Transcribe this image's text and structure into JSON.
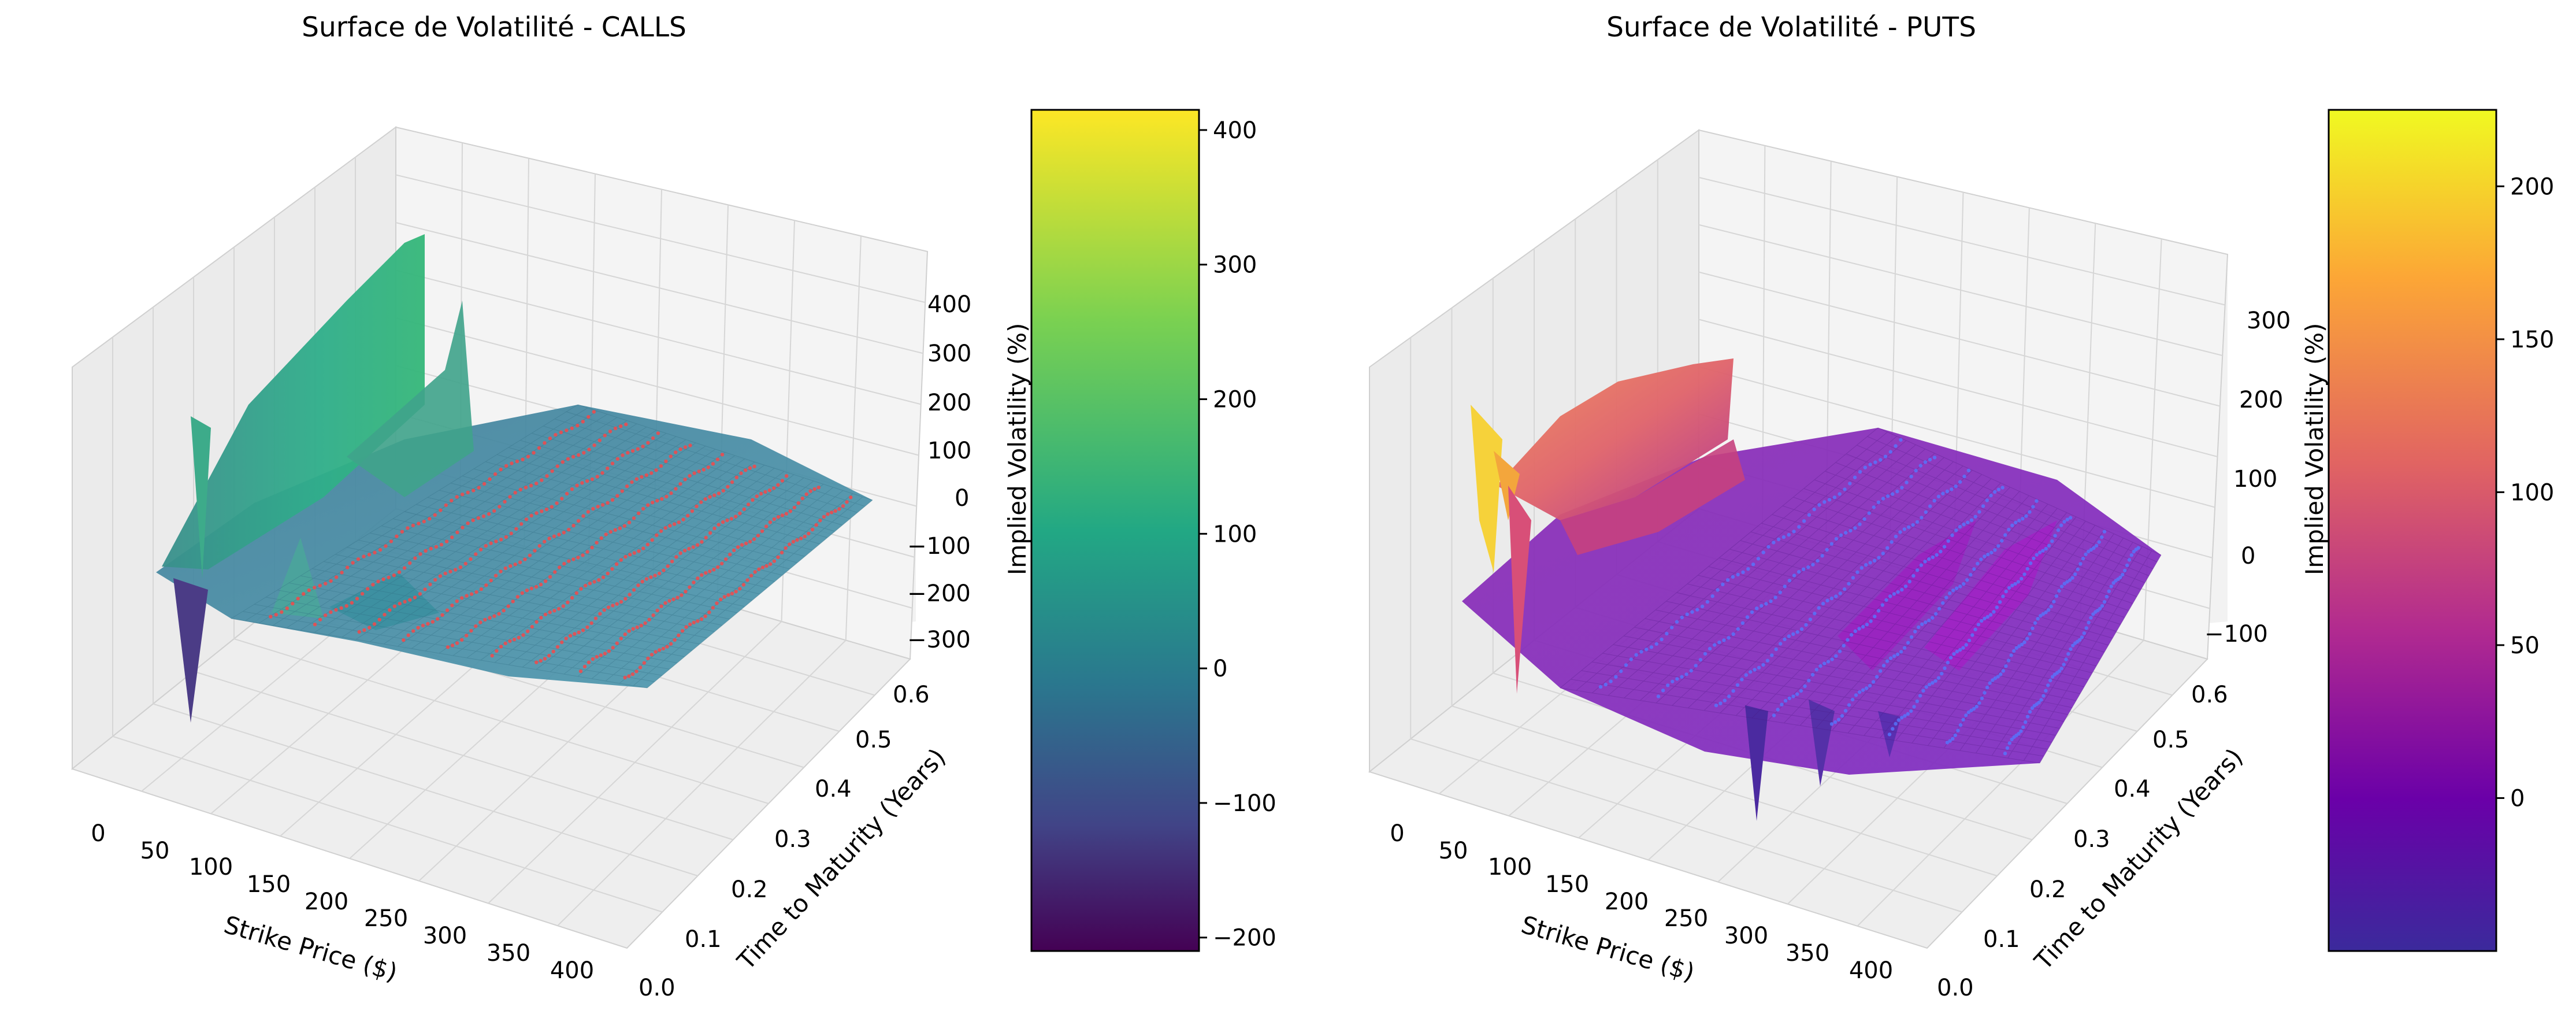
{
  "chart_data": [
    {
      "type": "surface3d",
      "title": "Surface de Volatilité - CALLS",
      "xlabel": "Strike Price ($)",
      "ylabel": "Time to Maturity (Years)",
      "zlabel": "Implied Volatility (%)",
      "x_ticks": [
        "0",
        "50",
        "100",
        "150",
        "200",
        "250",
        "300",
        "350",
        "400"
      ],
      "y_ticks": [
        "0.0",
        "0.1",
        "0.2",
        "0.3",
        "0.4",
        "0.5",
        "0.6"
      ],
      "z_ticks": [
        "−300",
        "−200",
        "−100",
        "0",
        "100",
        "200",
        "300",
        "400"
      ],
      "xlim": [
        0,
        420
      ],
      "ylim": [
        0,
        0.62
      ],
      "zlim": [
        -350,
        450
      ],
      "colormap": "viridis",
      "scatter_color": "#ff4444",
      "colorbar": {
        "label": "Implied Volatility (%)",
        "range": [
          -210,
          415
        ],
        "ticks": [
          "400",
          "300",
          "200",
          "100",
          "0",
          "−100",
          "−200"
        ],
        "colors": [
          "#fde725",
          "#5ec962",
          "#21918c",
          "#3b528b",
          "#440154"
        ]
      },
      "surface_summary": {
        "baseline_iv": 0,
        "peaks": [
          {
            "strike": 60,
            "maturity": 0.25,
            "iv": 420
          },
          {
            "strike": 20,
            "maturity": 0.05,
            "iv": 150
          },
          {
            "strike": 120,
            "maturity": 0.35,
            "iv": 190
          }
        ],
        "troughs": [
          {
            "strike": 15,
            "maturity": 0.05,
            "iv": -220
          },
          {
            "strike": 230,
            "maturity": 0.02,
            "iv": -160
          }
        ]
      }
    },
    {
      "type": "surface3d",
      "title": "Surface de Volatilité - PUTS",
      "xlabel": "Strike Price ($)",
      "ylabel": "Time to Maturity (Years)",
      "zlabel": "Implied Volatility (%)",
      "x_ticks": [
        "0",
        "50",
        "100",
        "150",
        "200",
        "250",
        "300",
        "350",
        "400"
      ],
      "y_ticks": [
        "0.0",
        "0.1",
        "0.2",
        "0.3",
        "0.4",
        "0.5",
        "0.6"
      ],
      "z_ticks": [
        "−100",
        "0",
        "100",
        "200",
        "300"
      ],
      "xlim": [
        0,
        420
      ],
      "ylim": [
        0,
        0.62
      ],
      "zlim": [
        -120,
        350
      ],
      "colormap": "plasma",
      "scatter_color": "#4466ff",
      "colorbar": {
        "label": "Implied Volatility (%)",
        "range": [
          -50,
          225
        ],
        "ticks": [
          "200",
          "150",
          "100",
          "50",
          "0"
        ],
        "colors": [
          "#f0f921",
          "#fca636",
          "#e16462",
          "#b12a90",
          "#6a00a8",
          "#0d0887"
        ]
      },
      "surface_summary": {
        "baseline_iv": 15,
        "peaks": [
          {
            "strike": 10,
            "maturity": 0.03,
            "iv": 220
          },
          {
            "strike": 70,
            "maturity": 0.2,
            "iv": 180
          },
          {
            "strike": 290,
            "maturity": 0.4,
            "iv": 90
          }
        ],
        "troughs": [
          {
            "strike": 230,
            "maturity": 0.02,
            "iv": -60
          },
          {
            "strike": 30,
            "maturity": 0.05,
            "iv": -40
          }
        ]
      }
    }
  ]
}
